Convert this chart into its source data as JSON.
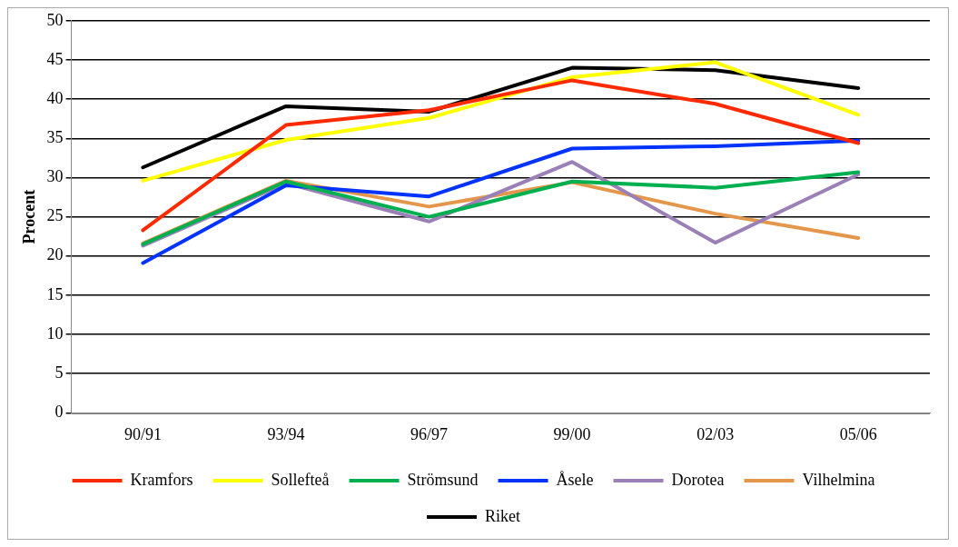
{
  "chart_data": {
    "type": "line",
    "ylabel": "Procent",
    "categories": [
      "90/91",
      "93/94",
      "96/97",
      "99/00",
      "02/03",
      "05/06"
    ],
    "series": [
      {
        "name": "Kramfors",
        "color": "#ff2a00",
        "values": [
          23.3,
          36.7,
          38.6,
          42.4,
          39.4,
          34.4
        ]
      },
      {
        "name": "Sollefteå",
        "color": "#ffff00",
        "values": [
          29.6,
          34.8,
          37.6,
          42.8,
          44.7,
          38.0
        ]
      },
      {
        "name": "Strömsund",
        "color": "#00b050",
        "values": [
          21.5,
          29.5,
          25.0,
          29.5,
          28.7,
          30.7
        ]
      },
      {
        "name": "Åsele",
        "color": "#0033ff",
        "values": [
          19.1,
          29.0,
          27.6,
          33.7,
          34.0,
          34.7
        ]
      },
      {
        "name": "Dorotea",
        "color": "#9b80b8",
        "values": [
          21.3,
          29.3,
          24.4,
          32.0,
          21.7,
          30.4
        ]
      },
      {
        "name": "Vilhelmina",
        "color": "#e4964a",
        "values": [
          21.6,
          29.6,
          26.3,
          29.4,
          25.4,
          22.3
        ]
      },
      {
        "name": "Riket",
        "color": "#000000",
        "values": [
          31.3,
          39.1,
          38.4,
          44.0,
          43.7,
          41.4
        ]
      }
    ],
    "ylim": [
      0,
      50
    ],
    "yticks": [
      0,
      5,
      10,
      15,
      20,
      25,
      30,
      35,
      40,
      45,
      50
    ],
    "grid": "y",
    "legend": "bottom",
    "marker": "none",
    "line_style": "solid"
  }
}
